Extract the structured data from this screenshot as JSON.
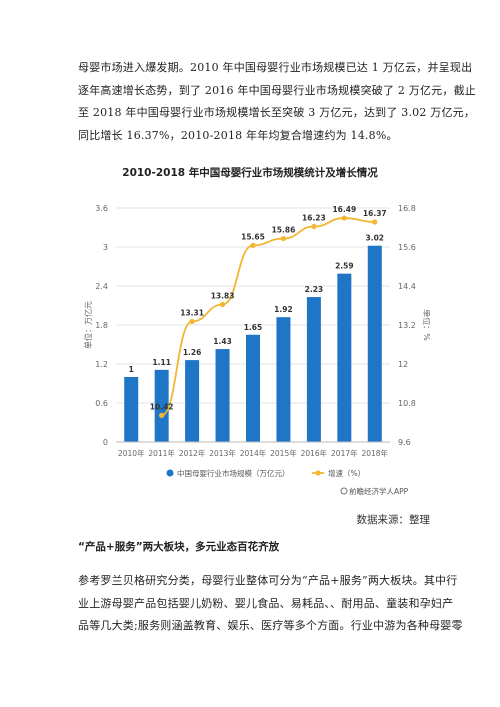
{
  "intro_paragraph": {
    "lines": [
      "母婴市场进入爆发期。2010 年中国母婴行业市场规模已达 1 万亿云，并呈现出",
      "逐年高速增长态势，到了 2016 年中国母婴行业市场规模突破了 2 万亿元，截止",
      "至 2018 年中国母婴行业市场规模增长至突破 3 万亿元，达到了 3.02 万亿元，",
      "同比增长 16.37%，2010-2018 年年均复合增速约为 14.8%。"
    ]
  },
  "chart_data": {
    "type": "bar",
    "title": "2010-2018 年中国母婴行业市场规模统计及增长情况",
    "categories": [
      "2010年",
      "2011年",
      "2012年",
      "2013年",
      "2014年",
      "2015年",
      "2016年",
      "2017年",
      "2018年"
    ],
    "series": [
      {
        "name": "中国母婴行业市场规模（万亿元）",
        "type": "bar",
        "axis": "left",
        "color": "#1f76c7",
        "values": [
          1,
          1.11,
          1.26,
          1.43,
          1.65,
          1.92,
          2.23,
          2.59,
          3.02
        ],
        "labels": [
          "1",
          "1.11",
          "1.26",
          "1.43",
          "1.65",
          "1.92",
          "2.23",
          "2.59",
          "3.02"
        ]
      },
      {
        "name": "增速（%）",
        "type": "line",
        "axis": "right",
        "color": "#f2b632",
        "values": [
          null,
          10.42,
          13.31,
          13.83,
          15.65,
          15.86,
          16.23,
          16.49,
          16.37
        ],
        "labels": [
          "",
          "10.42",
          "13.31",
          "13.83",
          "15.65",
          "15.86",
          "16.23",
          "16.49",
          "16.37"
        ]
      }
    ],
    "ylabel": "单位：万亿元",
    "y2label": "单位：%",
    "ylim": [
      0,
      3.6
    ],
    "yticks": [
      "0",
      "0.6",
      "1.2",
      "1.8",
      "2.4",
      "3",
      "3.6"
    ],
    "y2lim": [
      9.6,
      16.8
    ],
    "y2ticks": [
      "9.6",
      "10.8",
      "12",
      "13.2",
      "14.4",
      "15.6",
      "16.8"
    ],
    "grid": true,
    "legend": "bottom",
    "credit": "前瞻经济学人APP"
  },
  "source_note": "数据来源：整理",
  "section_heading": "“产品+服务”两大板块，多元业态百花齐放",
  "body_paragraph": {
    "lines": [
      "参考罗兰贝格研究分类，母婴行业整体可分为“产品+服务”两大板块。其中行",
      "业上游母婴产品包括婴儿奶粉、婴儿食品、易耗品、、耐用品、童装和孕妇产",
      "品等几大类;服务则涵盖教育、娱乐、医疗等多个方面。行业中游为各种母婴零"
    ]
  }
}
